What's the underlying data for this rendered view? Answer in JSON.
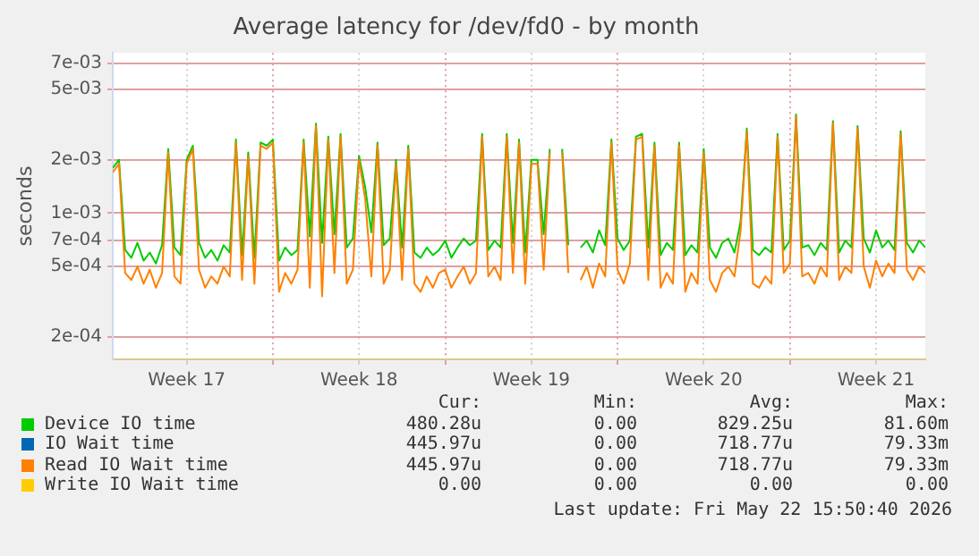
{
  "chart_data": {
    "type": "line",
    "title": "Average latency for /dev/fd0 - by month",
    "ylabel": "seconds",
    "log": "y",
    "grid": true,
    "legend": "bottom",
    "marker": "none",
    "line_style": "solid",
    "xlim": [
      "2026-04-20T12:00",
      "2026-05-23T12:00"
    ],
    "xticks": [
      {
        "value": "2026-04-23T12:00",
        "label": "Week 17"
      },
      {
        "value": "2026-04-27T00:00",
        "label": null
      },
      {
        "value": "2026-04-30T12:00",
        "label": "Week 18"
      },
      {
        "value": "2026-05-04T00:00",
        "label": null
      },
      {
        "value": "2026-05-07T12:00",
        "label": "Week 19"
      },
      {
        "value": "2026-05-11T00:00",
        "label": null
      },
      {
        "value": "2026-05-14T12:00",
        "label": "Week 20"
      },
      {
        "value": "2026-05-18T00:00",
        "label": null
      },
      {
        "value": "2026-05-21T12:00",
        "label": "Week 21"
      }
    ],
    "ylim": [
      0.00015,
      0.008
    ],
    "yticks": [
      {
        "value": 0.0002,
        "label": "2e-04"
      },
      {
        "value": 0.0005,
        "label": "5e-04"
      },
      {
        "value": 0.0007,
        "label": "7e-04"
      },
      {
        "value": 0.001,
        "label": "1e-03"
      },
      {
        "value": 0.002,
        "label": "2e-03"
      },
      {
        "value": 0.005,
        "label": "5e-03"
      },
      {
        "value": 0.007,
        "label": "7e-03"
      }
    ],
    "x": [
      "2026-04-20T12:00",
      "2026-04-20T18:00",
      "2026-04-21T00:00",
      "2026-04-21T06:00",
      "2026-04-21T12:00",
      "2026-04-21T18:00",
      "2026-04-22T00:00",
      "2026-04-22T06:00",
      "2026-04-22T12:00",
      "2026-04-22T18:00",
      "2026-04-23T00:00",
      "2026-04-23T06:00",
      "2026-04-23T12:00",
      "2026-04-23T18:00",
      "2026-04-24T00:00",
      "2026-04-24T06:00",
      "2026-04-24T12:00",
      "2026-04-24T18:00",
      "2026-04-25T00:00",
      "2026-04-25T06:00",
      "2026-04-25T12:00",
      "2026-04-25T18:00",
      "2026-04-26T00:00",
      "2026-04-26T06:00",
      "2026-04-26T12:00",
      "2026-04-26T18:00",
      "2026-04-27T00:00",
      "2026-04-27T06:00",
      "2026-04-27T12:00",
      "2026-04-27T18:00",
      "2026-04-28T00:00",
      "2026-04-28T06:00",
      "2026-04-28T12:00",
      "2026-04-28T18:00",
      "2026-04-29T00:00",
      "2026-04-29T06:00",
      "2026-04-29T12:00",
      "2026-04-29T18:00",
      "2026-04-30T00:00",
      "2026-04-30T06:00",
      "2026-04-30T12:00",
      "2026-04-30T18:00",
      "2026-05-01T00:00",
      "2026-05-01T06:00",
      "2026-05-01T12:00",
      "2026-05-01T18:00",
      "2026-05-02T00:00",
      "2026-05-02T06:00",
      "2026-05-02T12:00",
      "2026-05-02T18:00",
      "2026-05-03T00:00",
      "2026-05-03T06:00",
      "2026-05-03T12:00",
      "2026-05-03T18:00",
      "2026-05-04T00:00",
      "2026-05-04T06:00",
      "2026-05-04T12:00",
      "2026-05-04T18:00",
      "2026-05-05T00:00",
      "2026-05-05T06:00",
      "2026-05-05T12:00",
      "2026-05-05T18:00",
      "2026-05-06T00:00",
      "2026-05-06T06:00",
      "2026-05-06T12:00",
      "2026-05-06T18:00",
      "2026-05-07T00:00",
      "2026-05-07T06:00",
      "2026-05-07T12:00",
      "2026-05-07T18:00",
      "2026-05-08T00:00",
      "2026-05-08T06:00",
      "2026-05-08T12:00",
      "2026-05-08T18:00",
      "2026-05-09T00:00",
      "2026-05-09T06:00",
      "2026-05-09T12:00",
      "2026-05-09T18:00",
      "2026-05-10T00:00",
      "2026-05-10T06:00",
      "2026-05-10T12:00",
      "2026-05-10T18:00",
      "2026-05-11T00:00",
      "2026-05-11T06:00",
      "2026-05-11T12:00",
      "2026-05-11T18:00",
      "2026-05-12T00:00",
      "2026-05-12T06:00",
      "2026-05-12T12:00",
      "2026-05-12T18:00",
      "2026-05-13T00:00",
      "2026-05-13T06:00",
      "2026-05-13T12:00",
      "2026-05-13T18:00",
      "2026-05-14T00:00",
      "2026-05-14T06:00",
      "2026-05-14T12:00",
      "2026-05-14T18:00",
      "2026-05-15T00:00",
      "2026-05-15T06:00",
      "2026-05-15T12:00",
      "2026-05-15T18:00",
      "2026-05-16T00:00",
      "2026-05-16T06:00",
      "2026-05-16T12:00",
      "2026-05-16T18:00",
      "2026-05-17T00:00",
      "2026-05-17T06:00",
      "2026-05-17T12:00",
      "2026-05-17T18:00",
      "2026-05-18T00:00",
      "2026-05-18T06:00",
      "2026-05-18T12:00",
      "2026-05-18T18:00",
      "2026-05-19T00:00",
      "2026-05-19T06:00",
      "2026-05-19T12:00",
      "2026-05-19T18:00",
      "2026-05-20T00:00",
      "2026-05-20T06:00",
      "2026-05-20T12:00",
      "2026-05-20T18:00",
      "2026-05-21T00:00",
      "2026-05-21T06:00",
      "2026-05-21T12:00",
      "2026-05-21T18:00",
      "2026-05-22T00:00",
      "2026-05-22T06:00",
      "2026-05-22T12:00",
      "2026-05-22T18:00",
      "2026-05-23T00:00",
      "2026-05-23T06:00",
      "2026-05-23T12:00"
    ],
    "series": [
      {
        "name": "Device IO time",
        "color": "#00cc00",
        "values": [
          0.0018,
          0.002,
          0.00062,
          0.00056,
          0.00068,
          0.00054,
          0.0006,
          0.00052,
          0.00066,
          0.0023,
          0.00064,
          0.00058,
          0.002,
          0.0024,
          0.00068,
          0.00056,
          0.00062,
          0.00054,
          0.00066,
          0.0006,
          0.0026,
          0.00058,
          0.0022,
          0.00056,
          0.0025,
          0.0024,
          0.0026,
          0.00054,
          0.00064,
          0.00058,
          0.00062,
          0.0026,
          0.00074,
          0.0032,
          0.00068,
          0.0027,
          0.00076,
          0.0028,
          0.00064,
          0.00072,
          0.0021,
          0.0014,
          0.00078,
          0.0025,
          0.00066,
          0.00072,
          0.002,
          0.00064,
          0.0024,
          0.0006,
          0.00056,
          0.00064,
          0.00058,
          0.00062,
          0.0007,
          0.00056,
          0.00064,
          0.00072,
          0.00066,
          0.0007,
          0.0028,
          0.00062,
          0.0007,
          0.00064,
          0.0028,
          0.00068,
          0.0026,
          0.0006,
          0.002,
          0.002,
          0.00076,
          0.0023,
          null,
          0.0023,
          0.00066,
          null,
          0.00064,
          0.0007,
          0.0006,
          0.0008,
          0.00066,
          0.0026,
          0.00072,
          0.00062,
          0.0007,
          0.0027,
          0.0028,
          0.00064,
          0.0025,
          0.00058,
          0.00068,
          0.00062,
          0.0025,
          0.00058,
          0.00066,
          0.0006,
          0.0023,
          0.00064,
          0.00056,
          0.00068,
          0.00072,
          0.0006,
          0.0009,
          0.003,
          0.00062,
          0.00058,
          0.00064,
          0.0006,
          0.0028,
          0.00062,
          0.0007,
          0.0036,
          0.00064,
          0.00066,
          0.00058,
          0.00068,
          0.00062,
          0.0033,
          0.0006,
          0.0007,
          0.00064,
          0.0031,
          0.00072,
          0.0006,
          0.0008,
          0.00064,
          0.0007,
          0.00062,
          0.0029,
          0.00068,
          0.0006,
          0.0007,
          0.00064
        ]
      },
      {
        "name": "IO Wait time",
        "color": "#0066b3",
        "values": [
          null,
          null,
          null,
          null,
          null,
          null,
          null,
          null,
          null,
          null,
          null,
          null,
          null,
          null,
          null,
          null,
          null,
          null,
          null,
          null,
          null,
          null,
          null,
          null,
          null,
          null,
          null,
          null,
          null,
          null,
          null,
          null,
          null,
          null,
          null,
          null,
          null,
          null,
          null,
          null,
          null,
          null,
          null,
          null,
          null,
          null,
          null,
          null,
          null,
          null,
          null,
          null,
          null,
          null,
          null,
          null,
          null,
          null,
          null,
          null,
          null,
          null,
          null,
          null,
          null,
          null,
          null,
          null,
          null,
          null,
          null,
          null,
          null,
          null,
          null,
          null,
          null,
          null,
          null,
          null,
          null,
          null,
          null,
          null,
          null,
          null,
          null,
          null,
          null,
          null,
          null,
          null,
          null,
          null,
          null,
          null,
          null,
          null,
          null,
          null,
          null,
          null,
          null,
          null,
          null,
          null,
          null,
          null,
          null,
          null,
          null,
          null,
          null,
          null,
          null,
          null,
          null,
          null,
          null,
          null,
          null,
          null,
          null,
          null,
          null,
          null,
          null,
          null,
          null,
          null,
          null,
          null,
          null
        ]
      },
      {
        "name": "Read IO Wait time",
        "color": "#ff8000",
        "values": [
          0.0017,
          0.0019,
          0.00046,
          0.00042,
          0.0005,
          0.0004,
          0.00048,
          0.00038,
          0.00046,
          0.0022,
          0.00044,
          0.0004,
          0.0019,
          0.0023,
          0.00048,
          0.00038,
          0.00044,
          0.0004,
          0.0005,
          0.00044,
          0.0025,
          0.00042,
          0.0021,
          0.0004,
          0.0024,
          0.0023,
          0.0025,
          0.00036,
          0.00046,
          0.0004,
          0.00048,
          0.0025,
          0.00038,
          0.0031,
          0.00034,
          0.0026,
          0.00046,
          0.0027,
          0.0004,
          0.00048,
          0.002,
          0.0012,
          0.00044,
          0.0024,
          0.0004,
          0.00048,
          0.0019,
          0.00042,
          0.0023,
          0.0004,
          0.00036,
          0.00044,
          0.00038,
          0.00046,
          0.00048,
          0.00038,
          0.00044,
          0.0005,
          0.0004,
          0.00046,
          0.0027,
          0.00044,
          0.0005,
          0.00042,
          0.0027,
          0.00046,
          0.0025,
          0.0004,
          0.0019,
          0.0019,
          0.00048,
          0.0022,
          null,
          0.0022,
          0.00046,
          null,
          0.00042,
          0.0005,
          0.00038,
          0.00052,
          0.00044,
          0.0025,
          0.00048,
          0.0004,
          0.00052,
          0.0026,
          0.0027,
          0.00042,
          0.0024,
          0.00038,
          0.00046,
          0.0004,
          0.0024,
          0.00036,
          0.00046,
          0.0004,
          0.0022,
          0.00042,
          0.00036,
          0.00046,
          0.0005,
          0.00044,
          0.0008,
          0.0029,
          0.0004,
          0.00038,
          0.00044,
          0.0004,
          0.0027,
          0.00046,
          0.00052,
          0.0035,
          0.00044,
          0.00046,
          0.0004,
          0.0005,
          0.00044,
          0.0032,
          0.00042,
          0.0005,
          0.00046,
          0.003,
          0.0005,
          0.00038,
          0.00054,
          0.00044,
          0.00052,
          0.00046,
          0.0028,
          0.00048,
          0.00042,
          0.0005,
          0.00046
        ]
      },
      {
        "name": "Write IO Wait time",
        "color": "#ffcc00",
        "values": [
          null,
          null,
          null,
          null,
          null,
          null,
          null,
          null,
          null,
          null,
          null,
          null,
          null,
          null,
          null,
          null,
          null,
          null,
          null,
          null,
          null,
          null,
          null,
          null,
          null,
          null,
          null,
          null,
          null,
          null,
          null,
          null,
          null,
          null,
          null,
          null,
          null,
          null,
          null,
          null,
          null,
          null,
          null,
          null,
          null,
          null,
          null,
          null,
          null,
          null,
          null,
          null,
          null,
          null,
          null,
          null,
          null,
          null,
          null,
          null,
          null,
          null,
          null,
          null,
          null,
          null,
          null,
          null,
          null,
          null,
          null,
          null,
          null,
          null,
          null,
          null,
          null,
          null,
          null,
          null,
          null,
          null,
          null,
          null,
          null,
          null,
          null,
          null,
          null,
          null,
          null,
          null,
          null,
          null,
          null,
          null,
          null,
          null,
          null,
          null,
          null,
          null,
          null,
          null,
          null,
          null,
          null,
          null,
          null,
          null,
          null,
          null,
          null,
          null,
          null,
          null,
          null,
          null,
          null,
          null,
          null,
          null,
          null,
          null,
          null,
          null,
          null,
          null,
          null,
          null,
          null,
          null,
          null
        ]
      }
    ],
    "annotations": [
      "Cur:",
      "Min:",
      "Avg:",
      "Max:",
      "480.28u",
      "0.00",
      "829.25u",
      "81.60m",
      "445.97u",
      "0.00",
      "718.77u",
      "79.33m",
      "445.97u",
      "0.00",
      "718.77u",
      "79.33m",
      "0.00",
      "0.00",
      "0.00",
      "0.00",
      "Last update: Fri May 22 15:50:40 2026"
    ]
  }
}
